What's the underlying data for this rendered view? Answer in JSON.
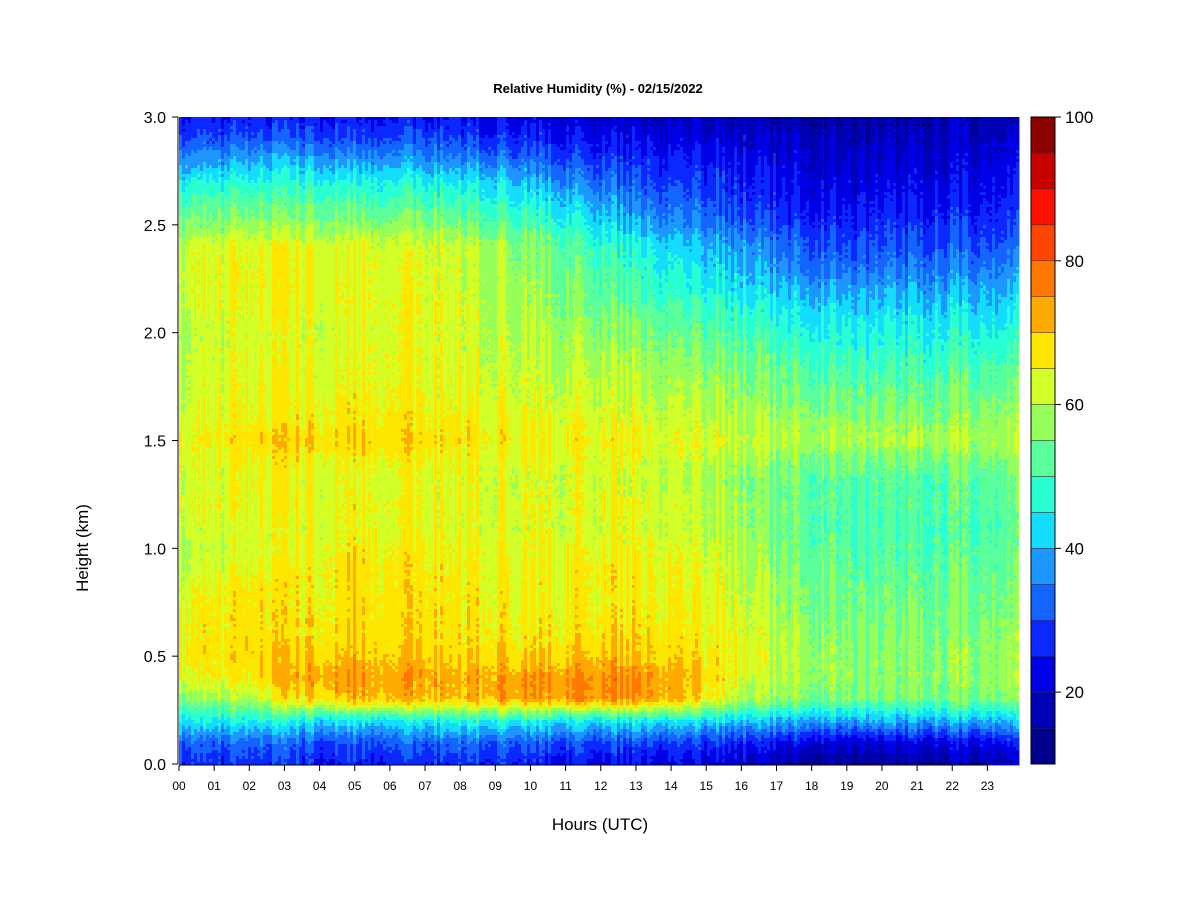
{
  "chart_data": {
    "type": "heatmap",
    "title": "Relative Humidity (%) - 02/15/2022",
    "xlabel": "Hours (UTC)",
    "ylabel": "Height (km)",
    "x_tick_labels": [
      "00",
      "01",
      "02",
      "03",
      "04",
      "05",
      "06",
      "07",
      "08",
      "09",
      "10",
      "11",
      "12",
      "13",
      "14",
      "15",
      "16",
      "17",
      "18",
      "19",
      "20",
      "21",
      "22",
      "23"
    ],
    "y_tick_labels": [
      "0.0",
      "0.5",
      "1.0",
      "1.5",
      "2.0",
      "2.5",
      "3.0"
    ],
    "y_ticks": [
      0.0,
      0.5,
      1.0,
      1.5,
      2.0,
      2.5,
      3.0
    ],
    "xlim": [
      0,
      23.9
    ],
    "ylim": [
      0,
      3.0
    ],
    "colorbar": {
      "min": 10,
      "max": 100,
      "step": 5,
      "tick_values": [
        20,
        40,
        60,
        80,
        100
      ],
      "tick_labels": [
        "20",
        "40",
        "60",
        "80",
        "100"
      ],
      "colors": [
        "#00008c",
        "#0000b4",
        "#0000e6",
        "#0a28ff",
        "#1464ff",
        "#1e96ff",
        "#14dcff",
        "#28ffd2",
        "#5aff9b",
        "#96ff5a",
        "#d2ff28",
        "#ffe600",
        "#ffaa00",
        "#ff7800",
        "#ff4600",
        "#ff0f00",
        "#c80000",
        "#8c0000"
      ]
    },
    "heights_km": [
      0.0,
      0.1,
      0.2,
      0.3,
      0.4,
      0.5,
      0.6,
      0.7,
      0.8,
      0.9,
      1.0,
      1.1,
      1.2,
      1.3,
      1.4,
      1.5,
      1.6,
      1.7,
      1.8,
      1.9,
      2.0,
      2.1,
      2.2,
      2.3,
      2.4,
      2.5,
      2.6,
      2.7,
      2.8,
      2.9,
      3.0
    ],
    "hours_utc": [
      0,
      1,
      2,
      3,
      4,
      5,
      6,
      7,
      8,
      9,
      10,
      11,
      12,
      13,
      14,
      15,
      16,
      17,
      18,
      19,
      20,
      21,
      22,
      23
    ],
    "values": [
      [
        28,
        33,
        45,
        57,
        64,
        67,
        66,
        65,
        64,
        62,
        60,
        62,
        64,
        63,
        64,
        65,
        63,
        62,
        61,
        61,
        60,
        62,
        63,
        63,
        62,
        56,
        51,
        45,
        38,
        30,
        25
      ],
      [
        27,
        32,
        44,
        57,
        65,
        67,
        66,
        66,
        65,
        63,
        61,
        62,
        64,
        63,
        64,
        66,
        64,
        63,
        62,
        62,
        61,
        63,
        64,
        64,
        63,
        56,
        52,
        45,
        38,
        30,
        25
      ],
      [
        27,
        32,
        45,
        58,
        66,
        68,
        67,
        66,
        66,
        64,
        62,
        63,
        64,
        64,
        65,
        67,
        65,
        64,
        63,
        63,
        62,
        63,
        64,
        64,
        63,
        57,
        52,
        46,
        38,
        30,
        25
      ],
      [
        27,
        32,
        45,
        66,
        71,
        69,
        67,
        67,
        66,
        66,
        63,
        63,
        65,
        64,
        66,
        68,
        66,
        65,
        64,
        63,
        63,
        64,
        65,
        65,
        64,
        57,
        52,
        46,
        39,
        31,
        25
      ],
      [
        26,
        31,
        45,
        69,
        74,
        70,
        68,
        67,
        67,
        67,
        65,
        64,
        65,
        64,
        66,
        69,
        67,
        66,
        64,
        64,
        63,
        64,
        65,
        65,
        64,
        58,
        53,
        47,
        39,
        31,
        26
      ],
      [
        26,
        31,
        44,
        72,
        74,
        71,
        69,
        68,
        68,
        68,
        67,
        65,
        66,
        65,
        66,
        69,
        67,
        66,
        65,
        65,
        64,
        65,
        65,
        64,
        64,
        57,
        52,
        46,
        38,
        30,
        25
      ],
      [
        26,
        32,
        44,
        71,
        73,
        70,
        68,
        68,
        67,
        67,
        66,
        64,
        65,
        64,
        66,
        69,
        67,
        66,
        65,
        65,
        64,
        65,
        64,
        64,
        63,
        57,
        51,
        46,
        38,
        30,
        25
      ],
      [
        27,
        32,
        45,
        71,
        73,
        70,
        68,
        68,
        67,
        67,
        66,
        64,
        65,
        64,
        65,
        68,
        66,
        65,
        64,
        64,
        63,
        64,
        63,
        63,
        62,
        56,
        51,
        45,
        37,
        30,
        24
      ],
      [
        27,
        33,
        46,
        70,
        72,
        68,
        67,
        67,
        66,
        66,
        65,
        63,
        64,
        63,
        65,
        67,
        66,
        64,
        64,
        63,
        62,
        63,
        62,
        62,
        61,
        55,
        50,
        44,
        36,
        29,
        24
      ],
      [
        27,
        33,
        47,
        73,
        74,
        69,
        67,
        67,
        66,
        66,
        65,
        63,
        64,
        63,
        64,
        67,
        65,
        64,
        63,
        62,
        61,
        61,
        60,
        60,
        59,
        53,
        48,
        43,
        35,
        28,
        23
      ],
      [
        26,
        32,
        46,
        73,
        74,
        69,
        67,
        66,
        65,
        65,
        64,
        63,
        64,
        62,
        64,
        66,
        64,
        63,
        62,
        61,
        60,
        59,
        58,
        57,
        56,
        51,
        46,
        40,
        33,
        27,
        22
      ],
      [
        25,
        31,
        45,
        74,
        75,
        70,
        68,
        67,
        66,
        66,
        65,
        63,
        64,
        63,
        64,
        66,
        64,
        63,
        61,
        60,
        59,
        57,
        56,
        54,
        53,
        48,
        43,
        37,
        31,
        25,
        21
      ],
      [
        24,
        30,
        44,
        76,
        76,
        71,
        68,
        67,
        66,
        67,
        65,
        63,
        65,
        63,
        64,
        66,
        64,
        62,
        61,
        59,
        57,
        55,
        53,
        51,
        49,
        44,
        39,
        34,
        29,
        24,
        20
      ],
      [
        24,
        30,
        45,
        74,
        75,
        70,
        68,
        67,
        66,
        66,
        65,
        63,
        64,
        62,
        63,
        65,
        63,
        61,
        60,
        58,
        56,
        53,
        50,
        48,
        46,
        40,
        35,
        31,
        27,
        23,
        19
      ],
      [
        23,
        29,
        44,
        72,
        73,
        69,
        67,
        66,
        65,
        65,
        64,
        62,
        63,
        61,
        62,
        64,
        62,
        60,
        58,
        56,
        54,
        51,
        48,
        45,
        43,
        37,
        33,
        29,
        26,
        22,
        19
      ],
      [
        22,
        28,
        43,
        66,
        69,
        67,
        66,
        65,
        64,
        63,
        62,
        60,
        61,
        59,
        61,
        63,
        61,
        59,
        57,
        55,
        52,
        49,
        46,
        43,
        40,
        35,
        31,
        28,
        25,
        21,
        18
      ],
      [
        20,
        27,
        42,
        60,
        64,
        65,
        64,
        63,
        62,
        61,
        60,
        58,
        59,
        57,
        59,
        62,
        60,
        58,
        56,
        54,
        51,
        48,
        44,
        41,
        38,
        33,
        29,
        27,
        24,
        21,
        18
      ],
      [
        18,
        25,
        41,
        58,
        61,
        62,
        61,
        60,
        59,
        58,
        56,
        55,
        56,
        55,
        57,
        61,
        59,
        57,
        55,
        52,
        49,
        46,
        42,
        38,
        35,
        30,
        27,
        25,
        23,
        20,
        17
      ],
      [
        15,
        23,
        40,
        56,
        59,
        59,
        58,
        57,
        56,
        55,
        54,
        53,
        54,
        53,
        56,
        60,
        58,
        55,
        53,
        50,
        47,
        44,
        40,
        35,
        32,
        28,
        25,
        23,
        21,
        19,
        16
      ],
      [
        14,
        21,
        39,
        55,
        57,
        57,
        56,
        55,
        54,
        53,
        52,
        51,
        52,
        52,
        55,
        60,
        57,
        54,
        52,
        49,
        46,
        43,
        39,
        34,
        30,
        27,
        24,
        22,
        20,
        18,
        16
      ],
      [
        14,
        21,
        39,
        54,
        56,
        56,
        55,
        54,
        53,
        52,
        51,
        50,
        51,
        51,
        54,
        59,
        56,
        53,
        51,
        48,
        45,
        42,
        38,
        34,
        30,
        27,
        24,
        22,
        20,
        18,
        16
      ],
      [
        15,
        22,
        39,
        54,
        56,
        56,
        55,
        54,
        53,
        52,
        51,
        50,
        51,
        51,
        54,
        59,
        56,
        53,
        51,
        48,
        45,
        42,
        38,
        34,
        30,
        27,
        24,
        22,
        20,
        18,
        16
      ],
      [
        16,
        23,
        40,
        55,
        57,
        57,
        56,
        55,
        54,
        53,
        52,
        51,
        52,
        52,
        55,
        60,
        57,
        54,
        52,
        49,
        46,
        43,
        39,
        35,
        31,
        28,
        25,
        23,
        21,
        19,
        17
      ],
      [
        18,
        25,
        41,
        56,
        58,
        58,
        57,
        56,
        55,
        54,
        53,
        52,
        53,
        53,
        56,
        60,
        58,
        55,
        53,
        50,
        47,
        44,
        40,
        36,
        32,
        29,
        26,
        24,
        22,
        20,
        17
      ]
    ]
  }
}
